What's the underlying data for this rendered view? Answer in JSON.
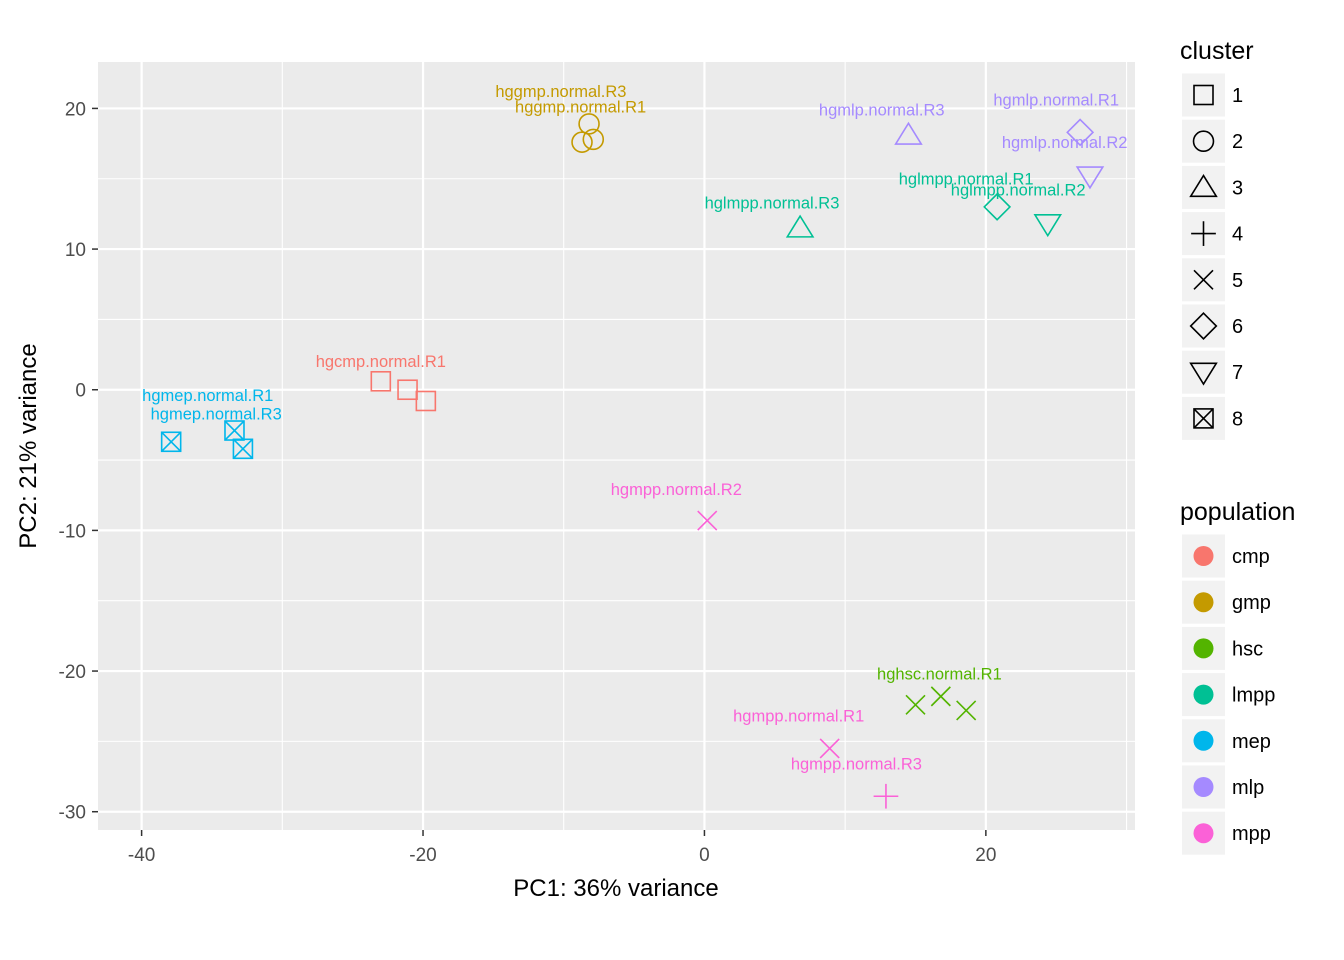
{
  "chart_data": {
    "type": "scatter",
    "title": "",
    "xlabel": "PC1: 36% variance",
    "ylabel": "PC2: 21% variance",
    "xlim": [
      -43.1,
      30.6
    ],
    "ylim": [
      -31.3,
      23.3
    ],
    "x_ticks": [
      -40,
      -20,
      0,
      20
    ],
    "y_ticks": [
      -30,
      -20,
      -10,
      0,
      10,
      20
    ],
    "grid": true,
    "legend_placement": "right",
    "legends": {
      "cluster": {
        "title": "cluster",
        "entries": [
          {
            "label": "1",
            "shape": "square"
          },
          {
            "label": "2",
            "shape": "circle"
          },
          {
            "label": "3",
            "shape": "triangle-up"
          },
          {
            "label": "4",
            "shape": "plus"
          },
          {
            "label": "5",
            "shape": "cross"
          },
          {
            "label": "6",
            "shape": "diamond"
          },
          {
            "label": "7",
            "shape": "triangle-down"
          },
          {
            "label": "8",
            "shape": "boxed-cross"
          }
        ]
      },
      "population": {
        "title": "population",
        "entries": [
          {
            "label": "cmp",
            "color": "#F8766D"
          },
          {
            "label": "gmp",
            "color": "#C49A00"
          },
          {
            "label": "hsc",
            "color": "#53B400"
          },
          {
            "label": "lmpp",
            "color": "#00C094"
          },
          {
            "label": "mep",
            "color": "#00B6EB"
          },
          {
            "label": "mlp",
            "color": "#A58AFF"
          },
          {
            "label": "mpp",
            "color": "#FB61D7"
          }
        ]
      }
    },
    "points": [
      {
        "x": -23.0,
        "y": 0.6,
        "cluster": "1",
        "population": "cmp"
      },
      {
        "x": -21.1,
        "y": 0.0,
        "cluster": "1",
        "population": "cmp"
      },
      {
        "x": -19.8,
        "y": -0.8,
        "cluster": "1",
        "population": "cmp"
      },
      {
        "x": -8.7,
        "y": 17.6,
        "cluster": "2",
        "population": "gmp"
      },
      {
        "x": -8.2,
        "y": 18.9,
        "cluster": "2",
        "population": "gmp"
      },
      {
        "x": -7.9,
        "y": 17.8,
        "cluster": "2",
        "population": "gmp"
      },
      {
        "x": 15.0,
        "y": -22.4,
        "cluster": "5",
        "population": "hsc"
      },
      {
        "x": 16.8,
        "y": -21.8,
        "cluster": "5",
        "population": "hsc"
      },
      {
        "x": 18.6,
        "y": -22.8,
        "cluster": "5",
        "population": "hsc"
      },
      {
        "x": 6.8,
        "y": 11.5,
        "cluster": "3",
        "population": "lmpp"
      },
      {
        "x": 20.8,
        "y": 13.0,
        "cluster": "6",
        "population": "lmpp"
      },
      {
        "x": 24.4,
        "y": 11.8,
        "cluster": "7",
        "population": "lmpp"
      },
      {
        "x": -37.9,
        "y": -3.7,
        "cluster": "8",
        "population": "mep"
      },
      {
        "x": -33.4,
        "y": -2.9,
        "cluster": "8",
        "population": "mep"
      },
      {
        "x": -32.8,
        "y": -4.2,
        "cluster": "8",
        "population": "mep"
      },
      {
        "x": 14.5,
        "y": 18.1,
        "cluster": "3",
        "population": "mlp"
      },
      {
        "x": 26.7,
        "y": 18.3,
        "cluster": "6",
        "population": "mlp"
      },
      {
        "x": 27.4,
        "y": 15.2,
        "cluster": "7",
        "population": "mlp"
      },
      {
        "x": 8.9,
        "y": -25.5,
        "cluster": "5",
        "population": "mpp"
      },
      {
        "x": 0.2,
        "y": -9.3,
        "cluster": "5",
        "population": "mpp"
      },
      {
        "x": 12.9,
        "y": -28.9,
        "cluster": "4",
        "population": "mpp"
      }
    ],
    "annotations": [
      {
        "text": "hgcmp.normal.R1",
        "x": -23.0,
        "y": 1.6,
        "population": "cmp"
      },
      {
        "text": "hggmp.normal.R3",
        "x": -10.2,
        "y": 20.8,
        "population": "gmp"
      },
      {
        "text": "hggmp.normal.R1",
        "x": -8.8,
        "y": 19.7,
        "population": "gmp"
      },
      {
        "text": "hghsc.normal.R1",
        "x": 16.7,
        "y": -20.6,
        "population": "hsc"
      },
      {
        "text": "hglmpp.normal.R3",
        "x": 4.8,
        "y": 12.9,
        "population": "lmpp"
      },
      {
        "text": "hglmpp.normal.R1",
        "x": 18.6,
        "y": 14.6,
        "population": "lmpp"
      },
      {
        "text": "hglmpp.normal.R2",
        "x": 22.3,
        "y": 13.8,
        "population": "lmpp"
      },
      {
        "text": "hgmep.normal.R1",
        "x": -35.3,
        "y": -0.8,
        "population": "mep"
      },
      {
        "text": "hgmep.normal.R3",
        "x": -34.7,
        "y": -2.1,
        "population": "mep"
      },
      {
        "text": "hgmlp.normal.R3",
        "x": 12.6,
        "y": 19.5,
        "population": "mlp"
      },
      {
        "text": "hgmlp.normal.R1",
        "x": 25.0,
        "y": 20.2,
        "population": "mlp"
      },
      {
        "text": "hgmlp.normal.R2",
        "x": 25.6,
        "y": 17.2,
        "population": "mlp"
      },
      {
        "text": "hgmpp.normal.R2",
        "x": -2.0,
        "y": -7.5,
        "population": "mpp"
      },
      {
        "text": "hgmpp.normal.R1",
        "x": 6.7,
        "y": -23.6,
        "population": "mpp"
      },
      {
        "text": "hgmpp.normal.R3",
        "x": 10.8,
        "y": -27.0,
        "population": "mpp"
      }
    ],
    "panel_background": "#EBEBEB",
    "grid_color": "#FFFFFF"
  }
}
